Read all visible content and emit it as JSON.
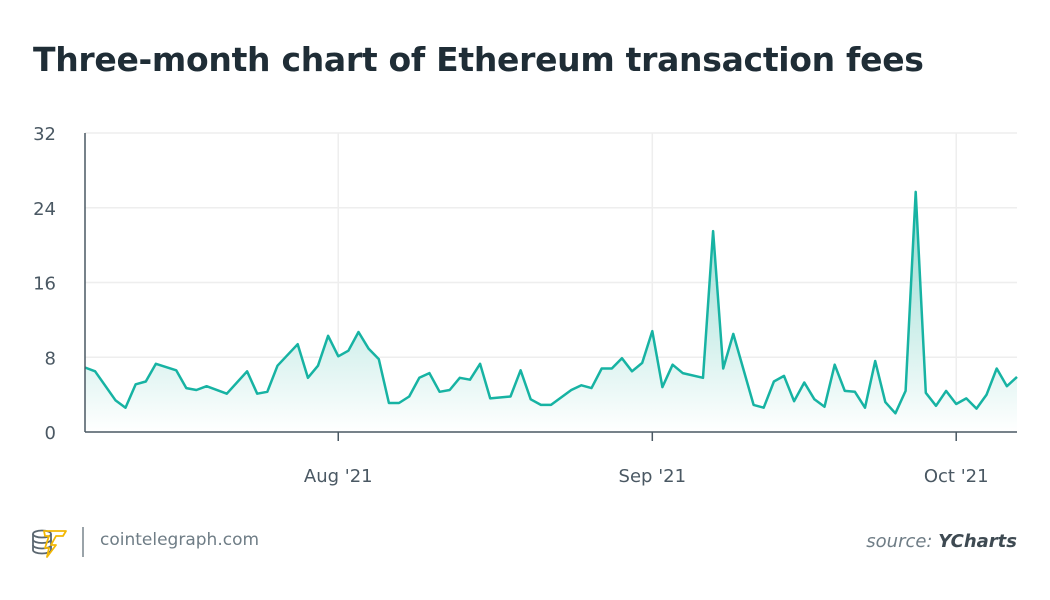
{
  "title": "Three-month chart of Ethereum transaction fees",
  "footer": {
    "site": "cointelegraph.com",
    "source_prefix": "source:",
    "source_name": "YCharts",
    "logo_text": "cointelegraph"
  },
  "colors": {
    "line": "#17b3a3",
    "fill_top": "#8fd9cf",
    "fill_bottom": "#ffffff",
    "grid": "#eeeeee",
    "axis": "#4a5863",
    "text": "#1f2d36"
  },
  "chart_data": {
    "type": "area",
    "title": "Three-month chart of Ethereum transaction fees",
    "xlabel": "",
    "ylabel": "",
    "xlim": [
      "2021-07-07",
      "2021-10-07"
    ],
    "ylim": [
      0,
      32
    ],
    "yticks": [
      0,
      8,
      16,
      24,
      32
    ],
    "xticks": [
      {
        "date": "2021-08-01",
        "label": "Aug '21"
      },
      {
        "date": "2021-09-01",
        "label": "Sep '21"
      },
      {
        "date": "2021-10-01",
        "label": "Oct '21"
      }
    ],
    "grid": true,
    "points": [
      [
        "2021-07-07",
        6.9
      ],
      [
        "2021-07-08",
        6.5
      ],
      [
        "2021-07-10",
        3.4
      ],
      [
        "2021-07-11",
        2.6
      ],
      [
        "2021-07-12",
        5.1
      ],
      [
        "2021-07-13",
        5.4
      ],
      [
        "2021-07-14",
        7.3
      ],
      [
        "2021-07-16",
        6.6
      ],
      [
        "2021-07-17",
        4.7
      ],
      [
        "2021-07-18",
        4.5
      ],
      [
        "2021-07-19",
        4.9
      ],
      [
        "2021-07-21",
        4.1
      ],
      [
        "2021-07-23",
        6.5
      ],
      [
        "2021-07-24",
        4.1
      ],
      [
        "2021-07-25",
        4.3
      ],
      [
        "2021-07-26",
        7.1
      ],
      [
        "2021-07-28",
        9.4
      ],
      [
        "2021-07-29",
        5.8
      ],
      [
        "2021-07-30",
        7.1
      ],
      [
        "2021-07-31",
        10.3
      ],
      [
        "2021-08-01",
        8.1
      ],
      [
        "2021-08-02",
        8.7
      ],
      [
        "2021-08-03",
        10.7
      ],
      [
        "2021-08-04",
        8.9
      ],
      [
        "2021-08-05",
        7.8
      ],
      [
        "2021-08-06",
        3.1
      ],
      [
        "2021-08-07",
        3.1
      ],
      [
        "2021-08-08",
        3.8
      ],
      [
        "2021-08-09",
        5.8
      ],
      [
        "2021-08-10",
        6.3
      ],
      [
        "2021-08-11",
        4.3
      ],
      [
        "2021-08-12",
        4.5
      ],
      [
        "2021-08-13",
        5.8
      ],
      [
        "2021-08-14",
        5.6
      ],
      [
        "2021-08-15",
        7.3
      ],
      [
        "2021-08-16",
        3.6
      ],
      [
        "2021-08-18",
        3.8
      ],
      [
        "2021-08-19",
        6.6
      ],
      [
        "2021-08-20",
        3.5
      ],
      [
        "2021-08-21",
        2.9
      ],
      [
        "2021-08-22",
        2.9
      ],
      [
        "2021-08-24",
        4.5
      ],
      [
        "2021-08-25",
        5.0
      ],
      [
        "2021-08-26",
        4.7
      ],
      [
        "2021-08-27",
        6.8
      ],
      [
        "2021-08-28",
        6.8
      ],
      [
        "2021-08-29",
        7.9
      ],
      [
        "2021-08-30",
        6.5
      ],
      [
        "2021-08-31",
        7.4
      ],
      [
        "2021-09-01",
        10.8
      ],
      [
        "2021-09-02",
        4.8
      ],
      [
        "2021-09-03",
        7.2
      ],
      [
        "2021-09-04",
        6.3
      ],
      [
        "2021-09-06",
        5.8
      ],
      [
        "2021-09-07",
        21.5
      ],
      [
        "2021-09-08",
        6.8
      ],
      [
        "2021-09-09",
        10.5
      ],
      [
        "2021-09-11",
        2.9
      ],
      [
        "2021-09-12",
        2.6
      ],
      [
        "2021-09-13",
        5.4
      ],
      [
        "2021-09-14",
        6.0
      ],
      [
        "2021-09-15",
        3.3
      ],
      [
        "2021-09-16",
        5.3
      ],
      [
        "2021-09-17",
        3.5
      ],
      [
        "2021-09-18",
        2.7
      ],
      [
        "2021-09-19",
        7.2
      ],
      [
        "2021-09-20",
        4.4
      ],
      [
        "2021-09-21",
        4.3
      ],
      [
        "2021-09-22",
        2.6
      ],
      [
        "2021-09-23",
        7.6
      ],
      [
        "2021-09-24",
        3.2
      ],
      [
        "2021-09-25",
        2.0
      ],
      [
        "2021-09-26",
        4.4
      ],
      [
        "2021-09-27",
        25.7
      ],
      [
        "2021-09-28",
        4.2
      ],
      [
        "2021-09-29",
        2.8
      ],
      [
        "2021-09-30",
        4.4
      ],
      [
        "2021-10-01",
        3.0
      ],
      [
        "2021-10-02",
        3.6
      ],
      [
        "2021-10-03",
        2.5
      ],
      [
        "2021-10-04",
        4.0
      ],
      [
        "2021-10-05",
        6.8
      ],
      [
        "2021-10-06",
        4.9
      ],
      [
        "2021-10-07",
        5.9
      ]
    ]
  }
}
